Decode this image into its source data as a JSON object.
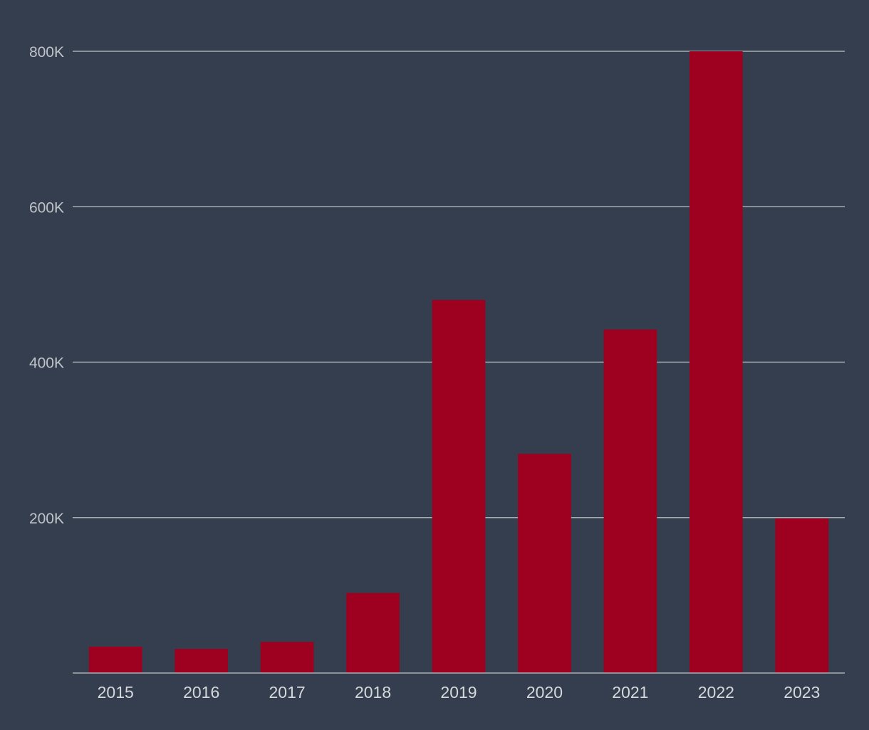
{
  "colors": {
    "background": "#343e4e",
    "bar": "#9e0020",
    "gridline": "#a9adb4",
    "y_tick_text": "#c0c3c8",
    "x_tick_text": "#d6d8dc"
  },
  "chart_data": {
    "type": "bar",
    "title": "",
    "xlabel": "",
    "ylabel": "",
    "categories": [
      "2015",
      "2016",
      "2017",
      "2018",
      "2019",
      "2020",
      "2021",
      "2022",
      "2023"
    ],
    "values": [
      34000,
      31000,
      40000,
      103000,
      480000,
      282000,
      442000,
      800000,
      199000
    ],
    "ylim": [
      0,
      800000
    ],
    "y_ticks": [
      200000,
      400000,
      600000,
      800000
    ],
    "y_tick_labels": [
      "200K",
      "400K",
      "600K",
      "800K"
    ],
    "grid": true,
    "legend": "none"
  }
}
